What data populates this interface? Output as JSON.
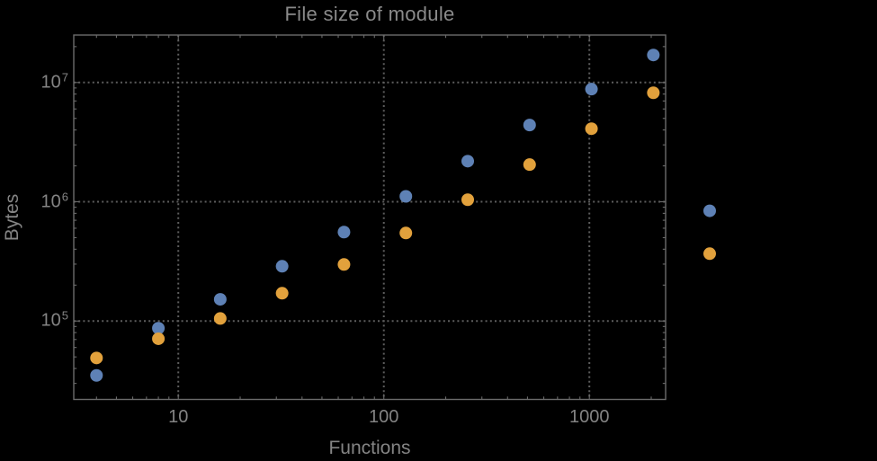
{
  "chart_data": {
    "type": "scatter",
    "title": "File size of module",
    "xlabel": "Functions",
    "ylabel": "Bytes",
    "x_scale": "log",
    "y_scale": "log",
    "xlim": [
      3.1,
      2350
    ],
    "ylim": [
      22000,
      25000000
    ],
    "x_ticks": [
      10,
      100,
      1000
    ],
    "x_tick_labels": [
      "10",
      "100",
      "1000"
    ],
    "y_tick_exponents": [
      5,
      6,
      7
    ],
    "y_tick_base": "10",
    "grid": "dotted gridlines at decade ticks, frame ticks on all four sides",
    "legend_position": "none",
    "colors": {
      "background": "#000000",
      "text": "#848484",
      "frame": "#6b6b6b",
      "grid": "#5d5d5d",
      "series_blue": "#5e81b5",
      "series_orange": "#e2a13c"
    },
    "marker_diameter_px": 14,
    "series": [
      {
        "name": "blue",
        "color": "#5e81b5",
        "marker": "circle",
        "points": [
          [
            4,
            35000
          ],
          [
            8,
            87000
          ],
          [
            16,
            152000
          ],
          [
            32,
            288000
          ],
          [
            64,
            557000
          ],
          [
            128,
            1110000
          ],
          [
            256,
            2190000
          ],
          [
            512,
            4400000
          ],
          [
            1024,
            8800000
          ],
          [
            2048,
            17000000
          ],
          [
            3850,
            840000
          ]
        ]
      },
      {
        "name": "orange",
        "color": "#e2a13c",
        "marker": "circle",
        "points": [
          [
            4,
            49000
          ],
          [
            8,
            71000
          ],
          [
            16,
            105000
          ],
          [
            32,
            171000
          ],
          [
            64,
            298000
          ],
          [
            128,
            547000
          ],
          [
            256,
            1040000
          ],
          [
            512,
            2050000
          ],
          [
            1024,
            4100000
          ],
          [
            2048,
            8200000
          ],
          [
            3850,
            367000
          ]
        ]
      }
    ]
  }
}
